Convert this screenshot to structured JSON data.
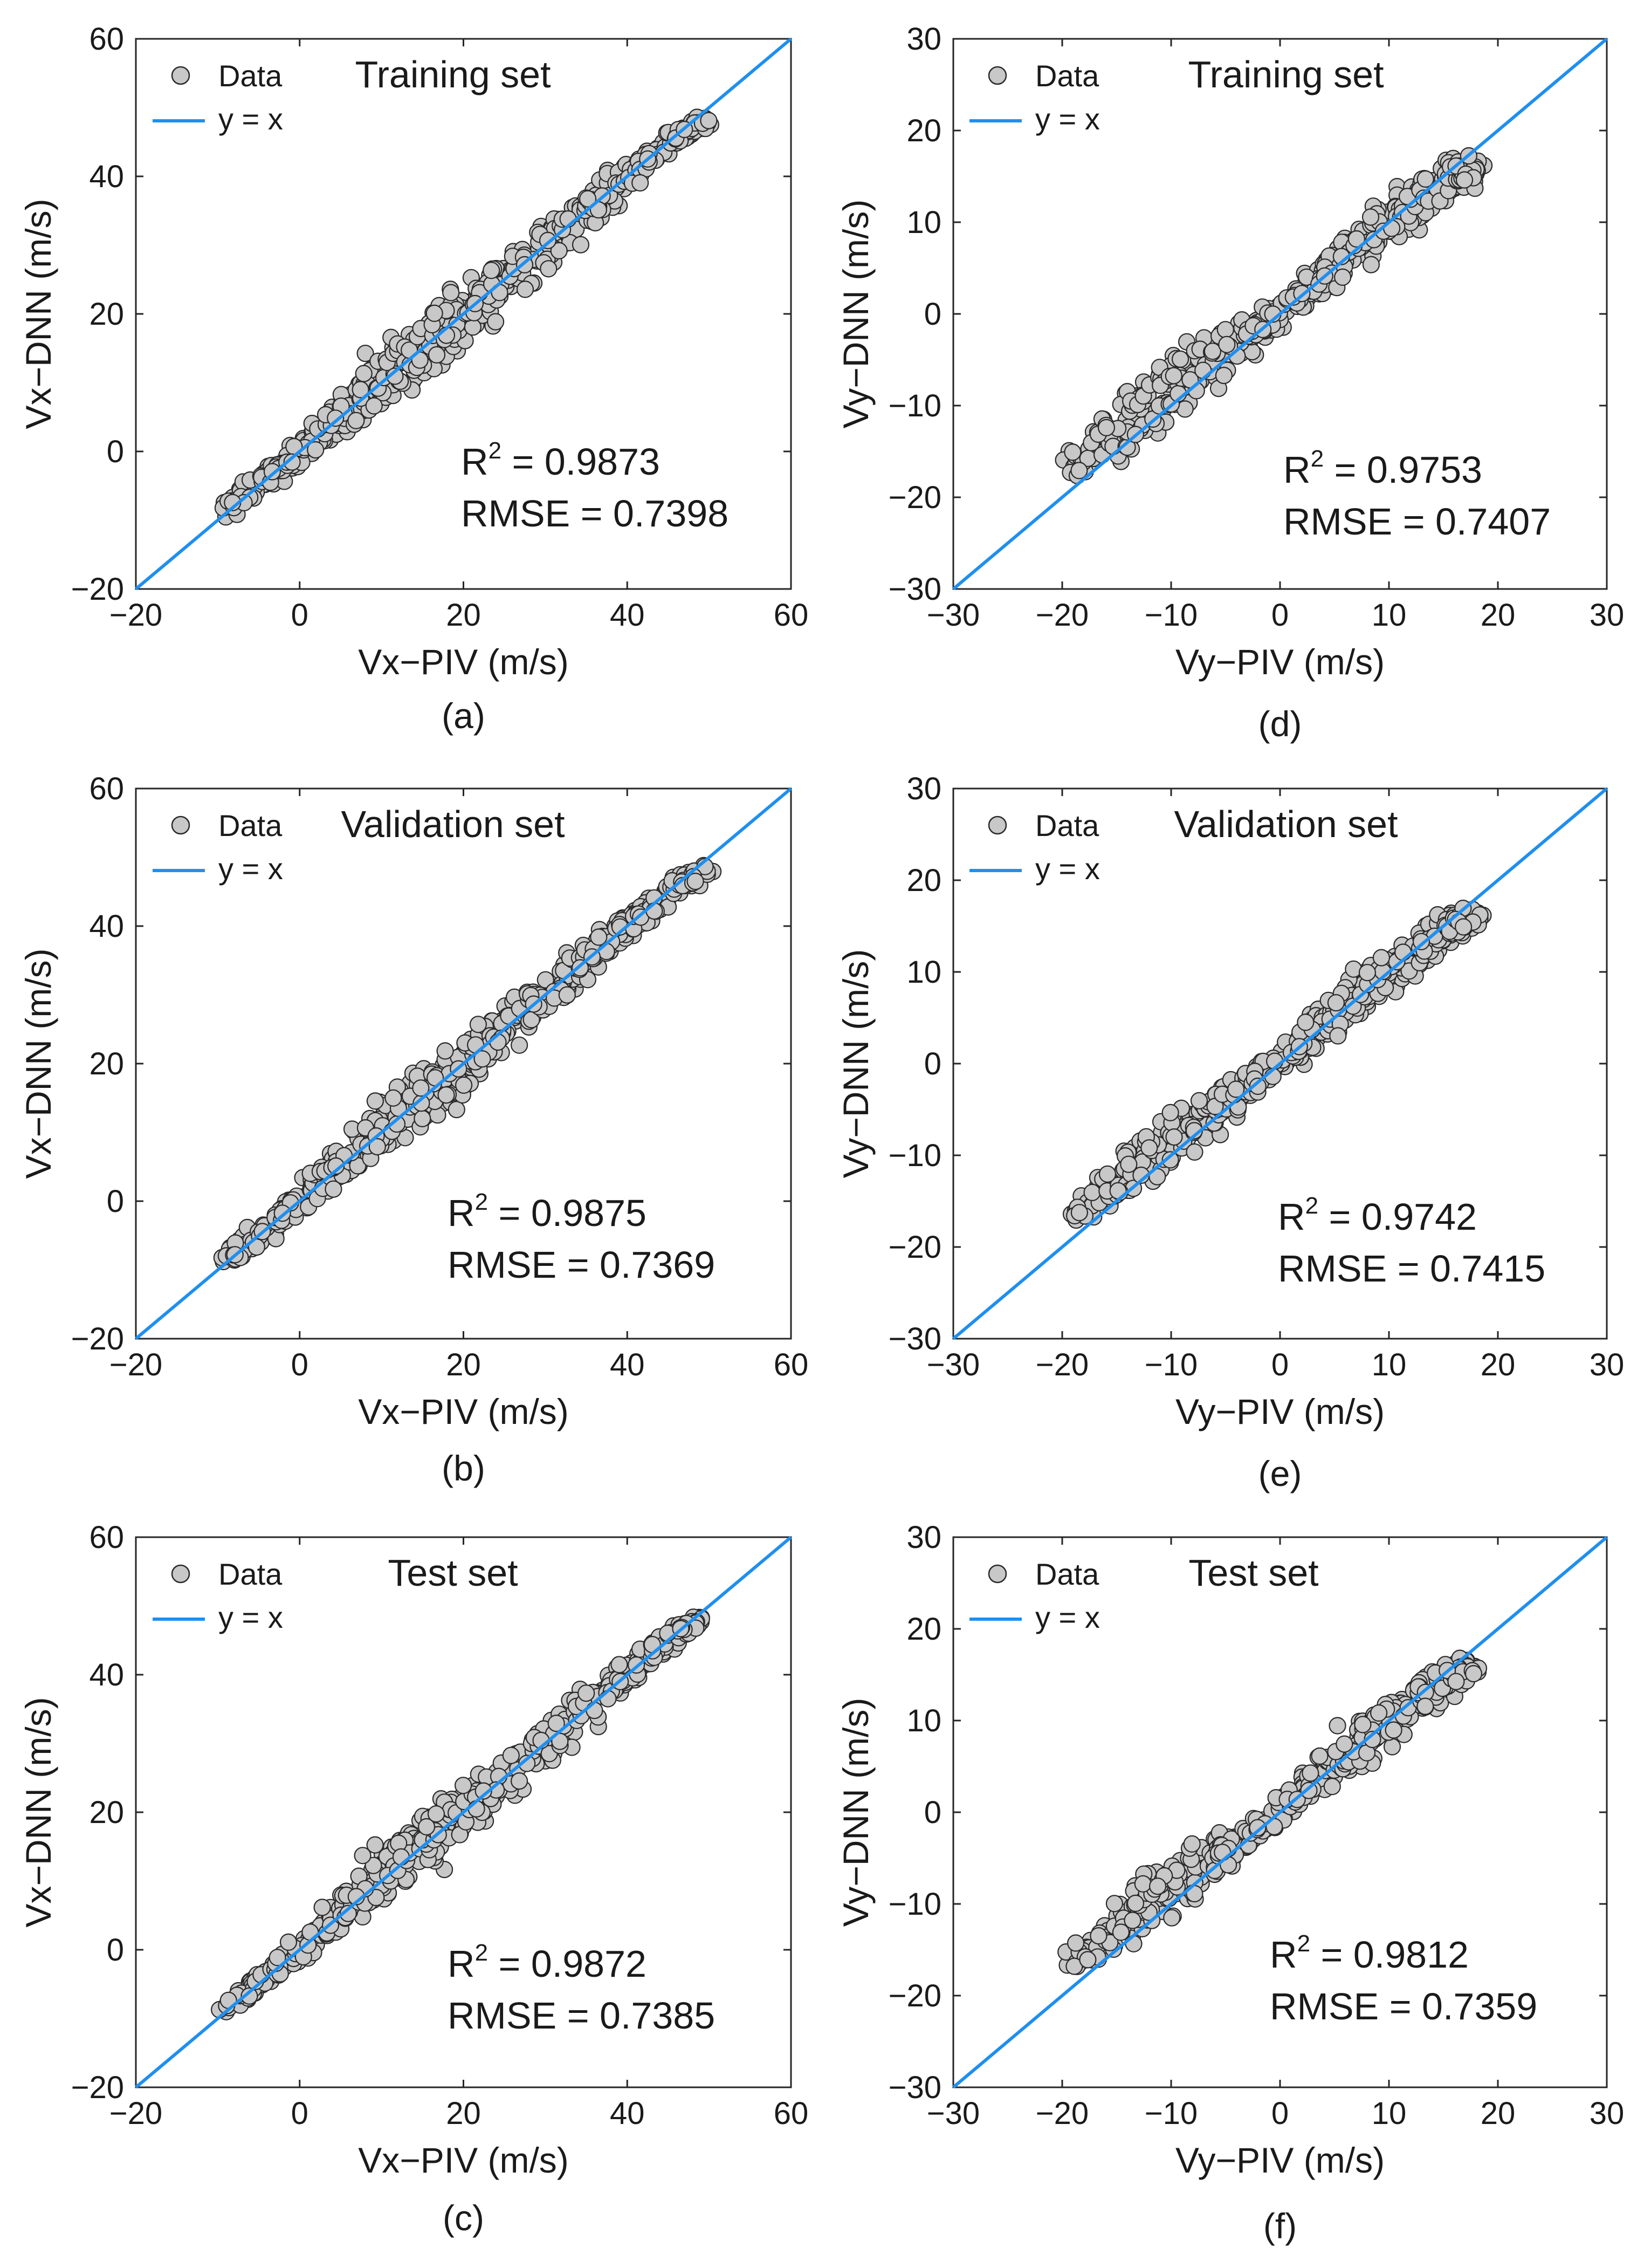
{
  "figure": {
    "legend": {
      "data_label": "Data",
      "line_label": "y = x"
    },
    "colors": {
      "line": "#1f8fef",
      "marker_fill": "#c8c8c8",
      "marker_edge": "#2a2a2a",
      "axis": "#262626"
    }
  },
  "chart_data": [
    {
      "id": "a",
      "type": "scatter",
      "caption": "(a)",
      "set_title": "Training set",
      "xlabel": "Vx−PIV (m/s)",
      "ylabel": "Vx−DNN (m/s)",
      "xlim": [
        -20,
        60
      ],
      "ylim": [
        -20,
        60
      ],
      "xticks": [
        "−20",
        "0",
        "20",
        "40",
        "60"
      ],
      "yticks": [
        "−20",
        "0",
        "20",
        "40",
        "60"
      ],
      "r2_label": "R",
      "r2_sup": "2",
      "r2_value": " = 0.9873",
      "rmse": "RMSE = 0.7398",
      "scatter_band": [
        [
          -9,
          -8.5,
          2.2
        ],
        [
          -3,
          -3,
          2.6
        ],
        [
          3,
          3,
          3.2
        ],
        [
          8,
          8,
          4.2
        ],
        [
          12,
          13,
          6.5
        ],
        [
          17,
          17,
          7
        ],
        [
          22,
          22,
          5.5
        ],
        [
          28,
          28,
          4.5
        ],
        [
          34,
          34,
          4.2
        ],
        [
          40,
          40,
          3.5
        ],
        [
          46,
          46,
          2.5
        ],
        [
          50,
          48,
          1.5
        ]
      ],
      "line": [
        [
          -20,
          -20
        ],
        [
          60,
          60
        ]
      ]
    },
    {
      "id": "b",
      "type": "scatter",
      "caption": "(b)",
      "set_title": "Validation set",
      "xlabel": "Vx−PIV (m/s)",
      "ylabel": "Vx−DNN (m/s)",
      "xlim": [
        -20,
        60
      ],
      "ylim": [
        -20,
        60
      ],
      "xticks": [
        "−20",
        "0",
        "20",
        "40",
        "60"
      ],
      "yticks": [
        "−20",
        "0",
        "20",
        "40",
        "60"
      ],
      "r2_label": "R",
      "r2_sup": "2",
      "r2_value": " = 0.9875",
      "rmse": "RMSE = 0.7369",
      "scatter_band": [
        [
          -9,
          -8.5,
          2.0
        ],
        [
          -3,
          -3,
          2.4
        ],
        [
          3,
          3,
          3.0
        ],
        [
          8,
          8,
          4.0
        ],
        [
          12,
          13,
          6.0
        ],
        [
          17,
          17,
          6.5
        ],
        [
          22,
          22,
          5.0
        ],
        [
          28,
          28,
          4.2
        ],
        [
          34,
          34,
          4.0
        ],
        [
          40,
          40,
          3.2
        ],
        [
          46,
          46,
          2.3
        ],
        [
          50,
          48,
          1.4
        ]
      ],
      "line": [
        [
          -20,
          -20
        ],
        [
          60,
          60
        ]
      ]
    },
    {
      "id": "c",
      "type": "scatter",
      "caption": "(c)",
      "set_title": "Test set",
      "xlabel": "Vx−PIV (m/s)",
      "ylabel": "Vx−DNN (m/s)",
      "xlim": [
        -20,
        60
      ],
      "ylim": [
        -20,
        60
      ],
      "xticks": [
        "−20",
        "0",
        "20",
        "40",
        "60"
      ],
      "yticks": [
        "−20",
        "0",
        "20",
        "40",
        "60"
      ],
      "r2_label": "R",
      "r2_sup": "2",
      "r2_value": " = 0.9872",
      "rmse": "RMSE = 0.7385",
      "scatter_band": [
        [
          -9,
          -8.5,
          2.0
        ],
        [
          -3,
          -3,
          2.4
        ],
        [
          3,
          3,
          3.0
        ],
        [
          8,
          8,
          4.0
        ],
        [
          12,
          13,
          6.0
        ],
        [
          17,
          17,
          6.5
        ],
        [
          22,
          22,
          5.0
        ],
        [
          28,
          28,
          4.2
        ],
        [
          34,
          34,
          4.0
        ],
        [
          40,
          40,
          3.2
        ],
        [
          46,
          46,
          2.3
        ],
        [
          49,
          48,
          1.4
        ]
      ],
      "line": [
        [
          -20,
          -20
        ],
        [
          60,
          60
        ]
      ]
    },
    {
      "id": "d",
      "type": "scatter",
      "caption": "(d)",
      "set_title": "Training set",
      "xlabel": "Vy−PIV (m/s)",
      "ylabel": "Vy−DNN (m/s)",
      "xlim": [
        -30,
        30
      ],
      "ylim": [
        -30,
        30
      ],
      "xticks": [
        "−30",
        "−20",
        "−10",
        "0",
        "10",
        "20",
        "30"
      ],
      "yticks": [
        "−30",
        "−20",
        "−10",
        "0",
        "10",
        "20",
        "30"
      ],
      "r2_label": "R",
      "r2_sup": "2",
      "r2_value": " = 0.9753",
      "rmse": "RMSE = 0.7407",
      "scatter_band": [
        [
          -19,
          -17,
          2.0
        ],
        [
          -15,
          -13.5,
          3.5
        ],
        [
          -11,
          -9.5,
          5.0
        ],
        [
          -7,
          -5.5,
          4.5
        ],
        [
          -3,
          -2.5,
          2.5
        ],
        [
          1,
          1,
          2.0
        ],
        [
          5,
          5,
          3.0
        ],
        [
          9,
          9,
          3.8
        ],
        [
          13,
          12.5,
          3.5
        ],
        [
          16,
          15,
          2.8
        ],
        [
          18,
          16,
          1.5
        ]
      ],
      "line": [
        [
          -30,
          -30
        ],
        [
          30,
          30
        ]
      ]
    },
    {
      "id": "e",
      "type": "scatter",
      "caption": "(e)",
      "set_title": "Validation set",
      "xlabel": "Vy−PIV (m/s)",
      "ylabel": "Vy−DNN (m/s)",
      "xlim": [
        -30,
        30
      ],
      "ylim": [
        -30,
        30
      ],
      "xticks": [
        "−30",
        "−20",
        "−10",
        "0",
        "10",
        "20",
        "30"
      ],
      "yticks": [
        "−30",
        "−20",
        "−10",
        "0",
        "10",
        "20",
        "30"
      ],
      "r2_label": "R",
      "r2_sup": "2",
      "r2_value": " = 0.9742",
      "rmse": "RMSE = 0.7415",
      "scatter_band": [
        [
          -19,
          -16.5,
          2.0
        ],
        [
          -15,
          -13,
          3.2
        ],
        [
          -11,
          -9,
          4.2
        ],
        [
          -7,
          -5.5,
          3.8
        ],
        [
          -3,
          -2.5,
          2.4
        ],
        [
          1,
          1,
          2.0
        ],
        [
          5,
          5,
          3.0
        ],
        [
          9,
          9,
          3.5
        ],
        [
          13,
          12.5,
          3.2
        ],
        [
          16,
          15,
          2.6
        ],
        [
          18,
          16,
          1.4
        ]
      ],
      "line": [
        [
          -30,
          -30
        ],
        [
          30,
          30
        ]
      ]
    },
    {
      "id": "f",
      "type": "scatter",
      "caption": "(f)",
      "set_title": "Test set",
      "xlabel": "Vy−PIV (m/s)",
      "ylabel": "Vy−DNN (m/s)",
      "xlim": [
        -30,
        30
      ],
      "ylim": [
        -30,
        30
      ],
      "xticks": [
        "−30",
        "−20",
        "−10",
        "0",
        "10",
        "20",
        "30"
      ],
      "yticks": [
        "−30",
        "−20",
        "−10",
        "0",
        "10",
        "20",
        "30"
      ],
      "r2_label": "R",
      "r2_sup": "2",
      "r2_value": " = 0.9812",
      "rmse": "RMSE = 0.7359",
      "scatter_band": [
        [
          -19,
          -16.5,
          2.0
        ],
        [
          -15,
          -13,
          3.2
        ],
        [
          -11,
          -9,
          4.5
        ],
        [
          -7,
          -5.5,
          3.8
        ],
        [
          -3,
          -2.5,
          2.4
        ],
        [
          1,
          1,
          2.0
        ],
        [
          5,
          5,
          3.0
        ],
        [
          9,
          9,
          3.5
        ],
        [
          13,
          12.5,
          3.2
        ],
        [
          16,
          15,
          2.6
        ],
        [
          18,
          16,
          1.4
        ]
      ],
      "line": [
        [
          -30,
          -30
        ],
        [
          30,
          30
        ]
      ]
    }
  ]
}
